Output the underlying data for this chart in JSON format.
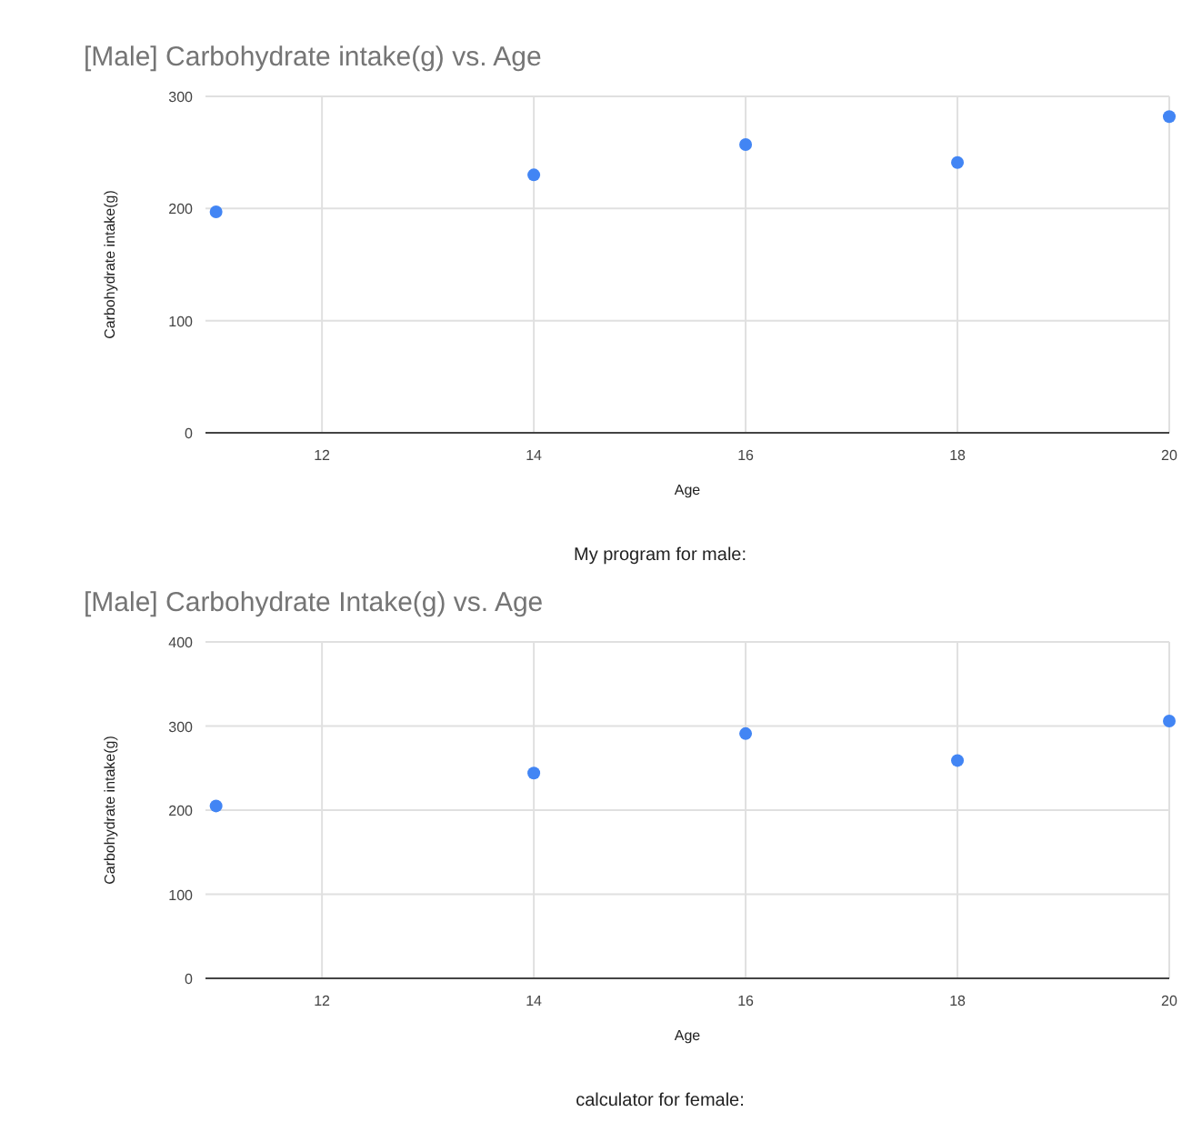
{
  "chart_data": [
    {
      "type": "scatter",
      "title": "[Male] Carbohydrate intake(g) vs. Age",
      "xlabel": "Age",
      "ylabel": "Carbohydrate intake(g)",
      "x": [
        11,
        14,
        16,
        18,
        20
      ],
      "series": [
        {
          "color": "#4285f4",
          "values": [
            197,
            230,
            257,
            241,
            282
          ]
        }
      ],
      "xlim": [
        10.9,
        20
      ],
      "xticks": [
        12,
        14,
        16,
        18,
        20
      ],
      "ylim": [
        0,
        300
      ],
      "yticks": [
        0,
        100,
        200,
        300
      ],
      "grid": true,
      "marker": "circle",
      "annotations": [
        "My program for male:"
      ]
    },
    {
      "type": "scatter",
      "title": "[Male] Carbohydrate Intake(g) vs. Age",
      "xlabel": "Age",
      "ylabel": "Carbohydrate intake(g)",
      "x": [
        11,
        14,
        16,
        18,
        20
      ],
      "series": [
        {
          "color": "#4285f4",
          "values": [
            205,
            244,
            291,
            259,
            306
          ]
        }
      ],
      "xlim": [
        10.9,
        20
      ],
      "xticks": [
        12,
        14,
        16,
        18,
        20
      ],
      "ylim": [
        0,
        400
      ],
      "yticks": [
        0,
        100,
        200,
        300,
        400
      ],
      "grid": true,
      "marker": "circle",
      "annotations": [
        "calculator for female:"
      ]
    }
  ]
}
